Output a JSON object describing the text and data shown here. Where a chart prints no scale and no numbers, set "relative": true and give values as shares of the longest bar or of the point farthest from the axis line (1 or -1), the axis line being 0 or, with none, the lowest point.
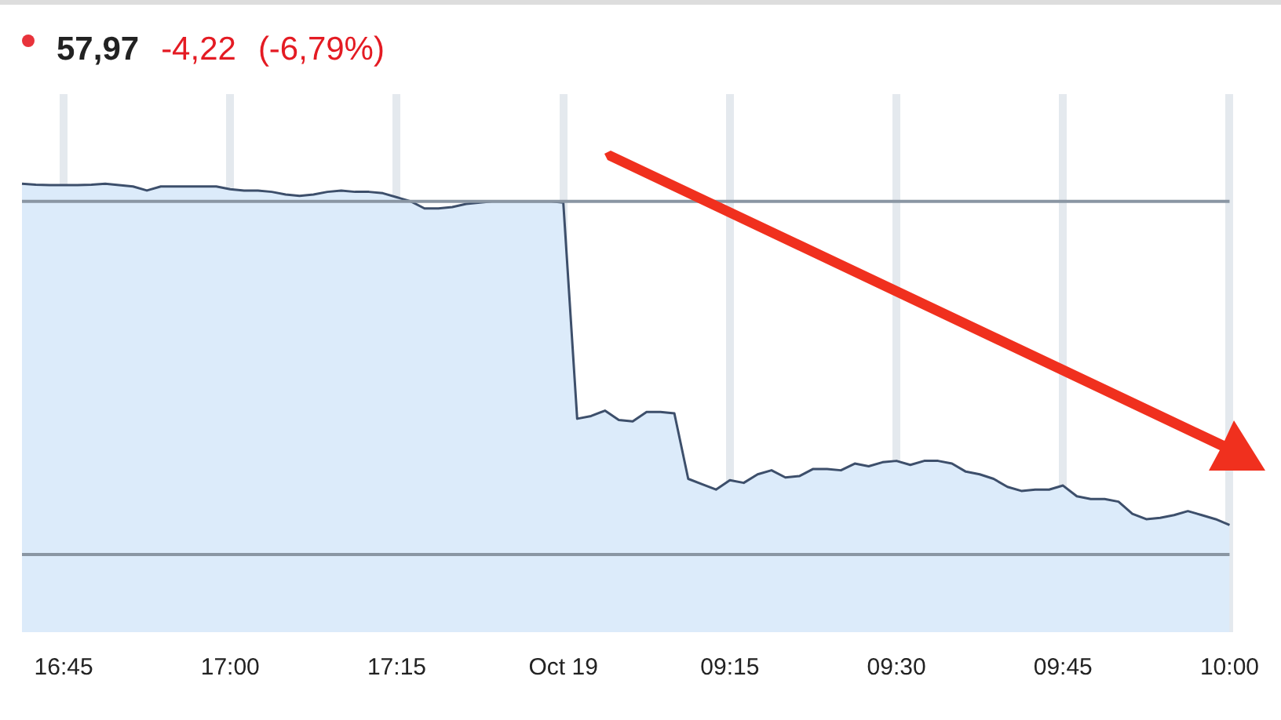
{
  "chart_data": {
    "type": "area",
    "relative": true,
    "grid": "x",
    "legend": false,
    "annotations": [
      "57,97",
      "-4,22",
      "(-6,79%)"
    ],
    "categories": [
      null,
      null,
      null,
      "16:45",
      null,
      null,
      null,
      null,
      null,
      null,
      null,
      null,
      null,
      null,
      null,
      "17:00",
      null,
      null,
      null,
      null,
      null,
      null,
      null,
      null,
      null,
      null,
      null,
      "17:15",
      null,
      null,
      null,
      null,
      null,
      null,
      null,
      null,
      null,
      null,
      null,
      "Oct 19",
      null,
      null,
      null,
      null,
      null,
      null,
      null,
      null,
      null,
      null,
      null,
      "09:15",
      null,
      null,
      null,
      null,
      null,
      null,
      null,
      null,
      null,
      null,
      null,
      "09:30",
      null,
      null,
      null,
      null,
      null,
      null,
      null,
      null,
      null,
      null,
      null,
      "09:45",
      null,
      null,
      null,
      null,
      null,
      null,
      null,
      null,
      null,
      null,
      null,
      "10:00"
    ],
    "series": [
      {
        "color": "#3d4f6b",
        "values": [
          1.0,
          0.998,
          0.997,
          0.997,
          0.997,
          0.998,
          1.0,
          0.997,
          0.994,
          0.985,
          0.994,
          0.994,
          0.994,
          0.994,
          0.994,
          0.988,
          0.985,
          0.985,
          0.982,
          0.976,
          0.973,
          0.976,
          0.982,
          0.985,
          0.982,
          0.982,
          0.979,
          0.97,
          0.961,
          0.945,
          0.945,
          0.948,
          0.955,
          0.958,
          0.961,
          0.961,
          0.961,
          0.961,
          0.961,
          0.958,
          0.476,
          0.482,
          0.494,
          0.473,
          0.47,
          0.491,
          0.491,
          0.488,
          0.342,
          0.33,
          0.318,
          0.339,
          0.333,
          0.352,
          0.361,
          0.345,
          0.348,
          0.364,
          0.364,
          0.361,
          0.376,
          0.37,
          0.379,
          0.382,
          0.373,
          0.382,
          0.382,
          0.376,
          0.358,
          0.352,
          0.342,
          0.324,
          0.315,
          0.318,
          0.318,
          0.327,
          0.303,
          0.297,
          0.297,
          0.291,
          0.264,
          0.252,
          0.255,
          0.261,
          0.27,
          0.261,
          0.252,
          0.239
        ]
      }
    ],
    "ref_lines": [
      {
        "axis": "y",
        "value": 0.961,
        "color": "#8a96a3"
      },
      {
        "axis": "y",
        "value": 0.173,
        "color": "#8a96a3"
      }
    ]
  }
}
